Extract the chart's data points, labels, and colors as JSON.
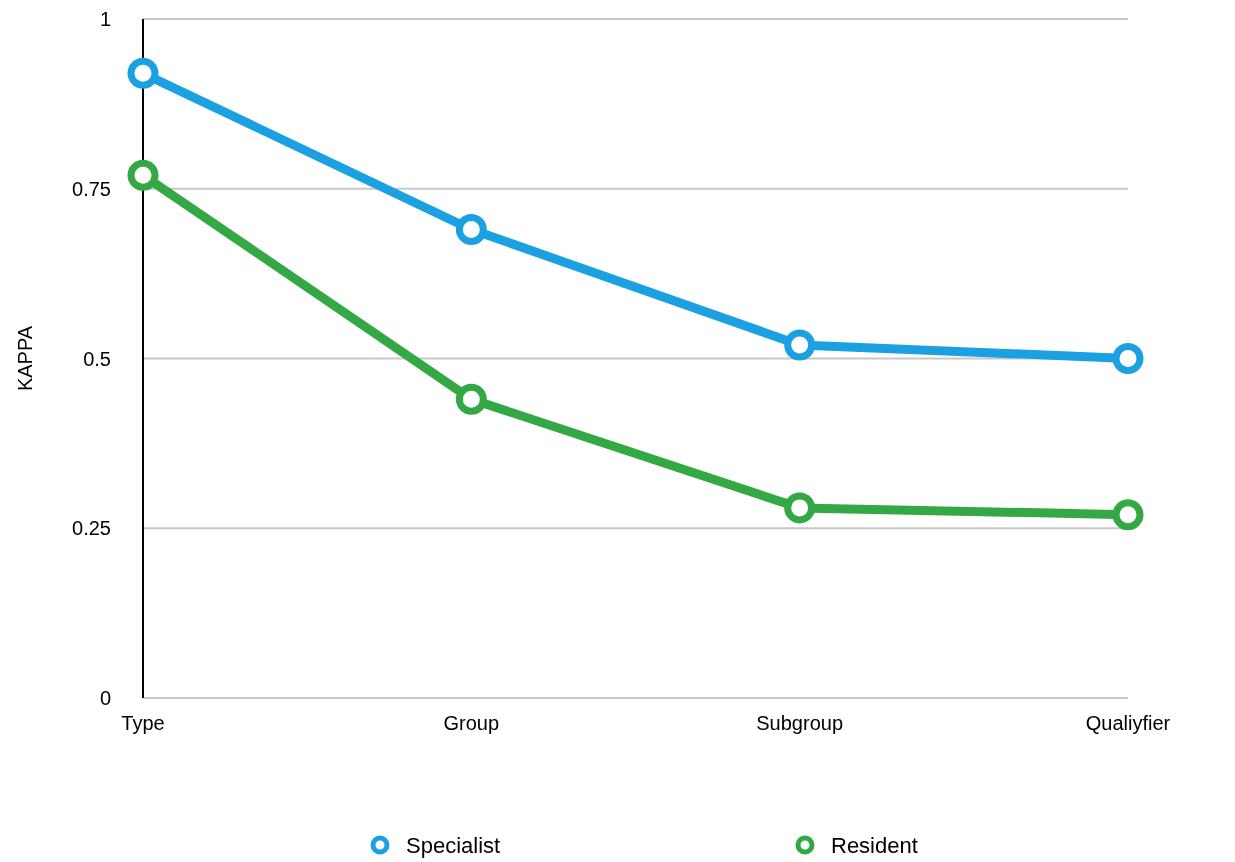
{
  "chart_data": {
    "type": "line",
    "ylabel": "KAPPA",
    "categories": [
      "Type",
      "Group",
      "Subgroup",
      "Qualiyfier"
    ],
    "series": [
      {
        "name": "Specialist",
        "color": "#1ba1e2",
        "values": [
          0.92,
          0.69,
          0.52,
          0.5
        ]
      },
      {
        "name": "Resident",
        "color": "#34a844",
        "values": [
          0.77,
          0.44,
          0.28,
          0.27
        ]
      }
    ],
    "ylim": [
      0,
      1
    ],
    "yticks": [
      0,
      0.25,
      0.5,
      0.75,
      1
    ],
    "grid": "y",
    "legend": "bottom",
    "marker": "circle"
  }
}
